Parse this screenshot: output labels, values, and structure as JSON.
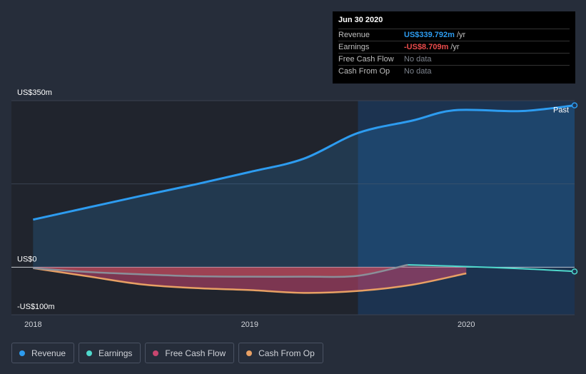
{
  "tooltip": {
    "date": "Jun 30 2020",
    "rows": [
      {
        "label": "Revenue",
        "value": "US$339.792m",
        "unit": "/yr",
        "color": "#2d9cf0"
      },
      {
        "label": "Earnings",
        "value": "-US$8.709m",
        "unit": "/yr",
        "color": "#ea4b4b"
      },
      {
        "label": "Free Cash Flow",
        "value": "No data",
        "unit": "",
        "color": "#7f858f"
      },
      {
        "label": "Cash From Op",
        "value": "No data",
        "unit": "",
        "color": "#7f858f"
      }
    ]
  },
  "legend": [
    {
      "label": "Revenue",
      "color": "#2d9cf0"
    },
    {
      "label": "Earnings",
      "color": "#4fd8cc"
    },
    {
      "label": "Free Cash Flow",
      "color": "#c8466f"
    },
    {
      "label": "Cash From Op",
      "color": "#e8a064"
    }
  ],
  "chart_data": {
    "type": "line",
    "title": "",
    "y_tick_labels": [
      {
        "value": 350,
        "label": "US$350m"
      },
      {
        "value": 0,
        "label": "US$0"
      },
      {
        "value": -100,
        "label": "-US$100m"
      }
    ],
    "x_tick_labels": [
      {
        "value": 2018.0,
        "label": "2018"
      },
      {
        "value": 2019.0,
        "label": "2019"
      },
      {
        "value": 2020.0,
        "label": "2020"
      }
    ],
    "xlim": [
      2017.9,
      2020.5
    ],
    "ylim": [
      -100,
      350
    ],
    "past_label": "Past",
    "past_start": 2019.5,
    "series": [
      {
        "name": "Revenue",
        "color": "#2d9cf0",
        "x": [
          2018.0,
          2018.25,
          2018.5,
          2018.75,
          2019.0,
          2019.25,
          2019.5,
          2019.75,
          2019.95,
          2020.25,
          2020.5
        ],
        "y": [
          100,
          125,
          150,
          174,
          200,
          228,
          282,
          308,
          330,
          328,
          340
        ]
      },
      {
        "name": "Earnings",
        "color": "#8a8f99",
        "x": [
          2018.0,
          2018.25,
          2018.5,
          2018.75,
          2019.0,
          2019.25,
          2019.5,
          2019.73,
          2019.95,
          2020.25,
          2020.5
        ],
        "y": [
          -2,
          -10,
          -15,
          -19,
          -20,
          -20,
          -18,
          5,
          2,
          -3,
          -9
        ]
      },
      {
        "name": "Cash From Op",
        "color": "#e8a064",
        "x": [
          2018.0,
          2018.25,
          2018.5,
          2018.75,
          2019.0,
          2019.25,
          2019.5,
          2019.75,
          2020.0
        ],
        "y": [
          -2,
          -19,
          -36,
          -44,
          -48,
          -54,
          -50,
          -37,
          -13
        ]
      }
    ]
  }
}
